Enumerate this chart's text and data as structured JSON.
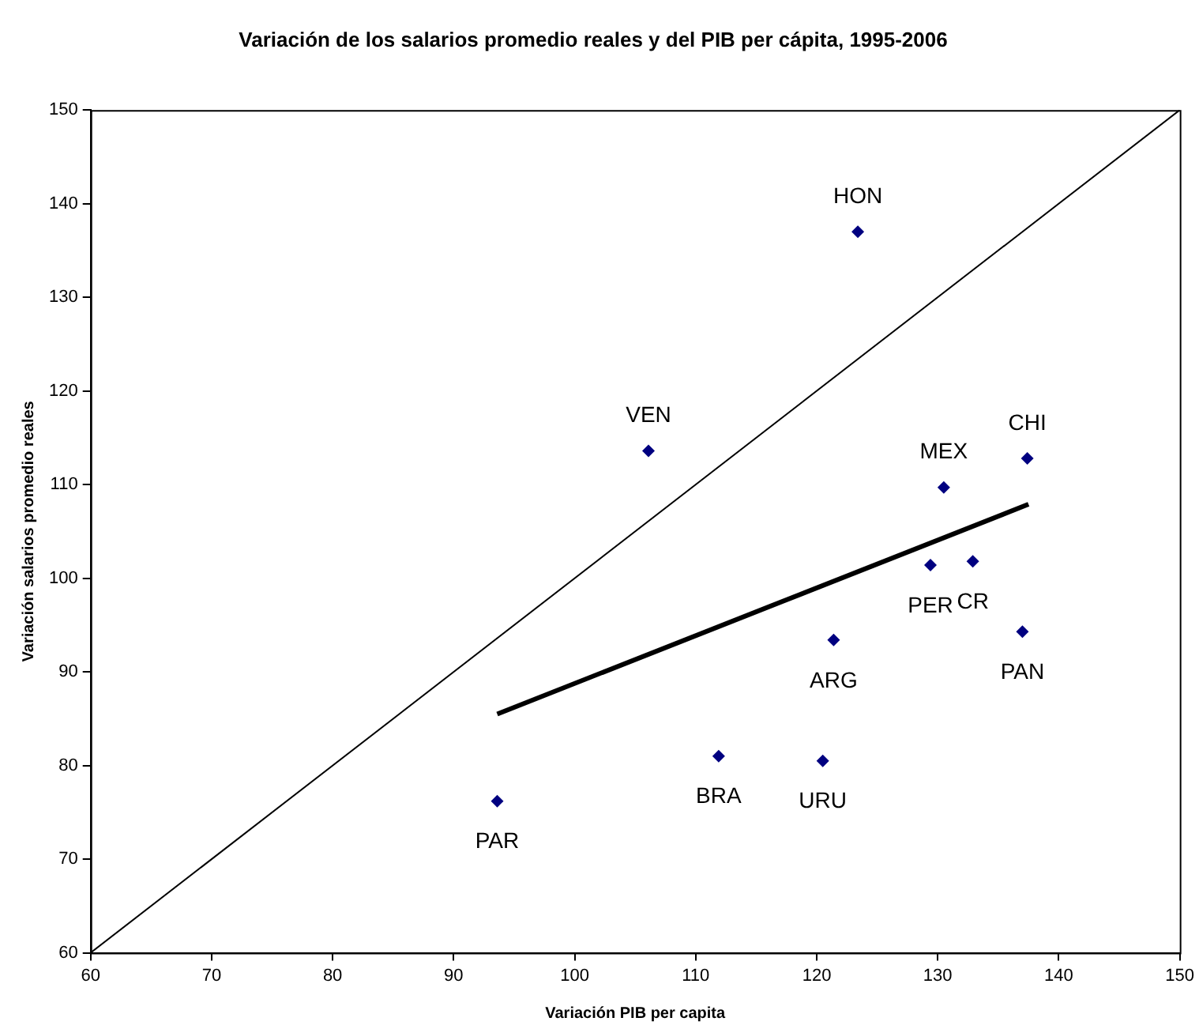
{
  "chart_data": {
    "type": "scatter",
    "title": "Variación de los salarios promedio reales y del PIB per cápita, 1995-2006",
    "xlabel": "Variación PIB per capita",
    "ylabel": "Variación salarios promedio reales",
    "xlim": [
      60,
      150
    ],
    "xticks": [
      60,
      70,
      80,
      90,
      100,
      110,
      120,
      130,
      140,
      150
    ],
    "ylim": [
      60,
      150
    ],
    "yticks": [
      60,
      70,
      80,
      90,
      100,
      110,
      120,
      130,
      140,
      150
    ],
    "grid": false,
    "legend": false,
    "series": [
      {
        "type": "scatter",
        "color": "#000080",
        "marker": "diamond",
        "x": [
          123.4,
          106.1,
          137.4,
          130.5,
          129.4,
          132.9,
          137.0,
          121.4,
          111.9,
          120.5,
          93.6
        ],
        "values": [
          137.0,
          113.6,
          112.8,
          109.7,
          101.4,
          101.8,
          94.3,
          93.4,
          81.0,
          80.5,
          76.2
        ]
      },
      {
        "type": "line",
        "color": "#000000",
        "marker": "none",
        "x": [
          93.6,
          137.5
        ],
        "values": [
          85.5,
          107.9
        ]
      },
      {
        "type": "line",
        "color": "#000000",
        "marker": "none",
        "x": [
          60,
          150
        ],
        "values": [
          60,
          150
        ]
      }
    ],
    "annotations": [
      {
        "text": "HON",
        "x": 123.4,
        "y": 137.0
      },
      {
        "text": "VEN",
        "x": 106.1,
        "y": 113.6
      },
      {
        "text": "CHI",
        "x": 137.4,
        "y": 112.8
      },
      {
        "text": "MEX",
        "x": 130.5,
        "y": 109.7
      },
      {
        "text": "PER",
        "x": 129.4,
        "y": 101.4
      },
      {
        "text": "CR",
        "x": 132.9,
        "y": 101.8
      },
      {
        "text": "PAN",
        "x": 137.0,
        "y": 94.3
      },
      {
        "text": "ARG",
        "x": 121.4,
        "y": 93.4
      },
      {
        "text": "BRA",
        "x": 111.9,
        "y": 81.0
      },
      {
        "text": "URU",
        "x": 120.5,
        "y": 80.5
      },
      {
        "text": "PAR",
        "x": 93.6,
        "y": 76.2
      }
    ]
  }
}
